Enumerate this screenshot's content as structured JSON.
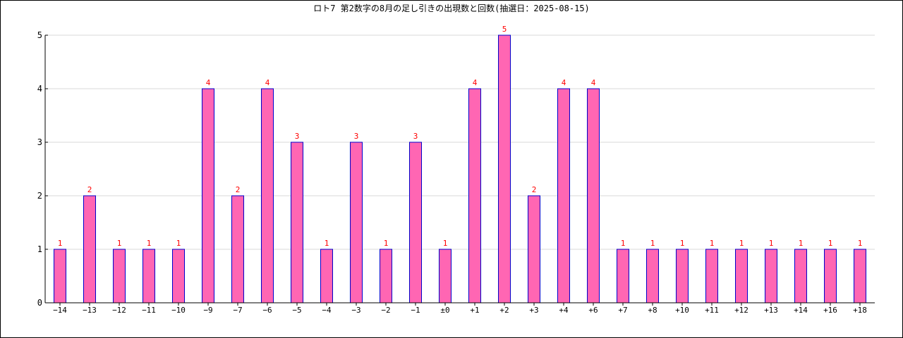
{
  "chart_data": {
    "type": "bar",
    "title": "ロト7 第2数字の8月の足し引きの出現数と回数(抽選日：2025-08-15)",
    "xlabel": "",
    "ylabel": "",
    "categories": [
      "−14",
      "−13",
      "−12",
      "−11",
      "−10",
      "−9",
      "−7",
      "−6",
      "−5",
      "−4",
      "−3",
      "−2",
      "−1",
      "±0",
      "+1",
      "+2",
      "+3",
      "+4",
      "+6",
      "+7",
      "+8",
      "+10",
      "+11",
      "+12",
      "+13",
      "+14",
      "+16",
      "+18"
    ],
    "values": [
      1,
      2,
      1,
      1,
      1,
      4,
      2,
      4,
      3,
      1,
      3,
      1,
      3,
      1,
      4,
      5,
      2,
      4,
      4,
      1,
      1,
      1,
      1,
      1,
      1,
      1,
      1,
      1
    ],
    "ylim": [
      0,
      5
    ],
    "yticks": [
      0,
      1,
      2,
      3,
      4,
      5
    ],
    "grid": true,
    "colors": {
      "bar_fill": "#ff66b3",
      "bar_edge": "#0000cc",
      "data_label": "#ff0000",
      "grid": "#d9d9d9",
      "axis": "#000000"
    }
  }
}
